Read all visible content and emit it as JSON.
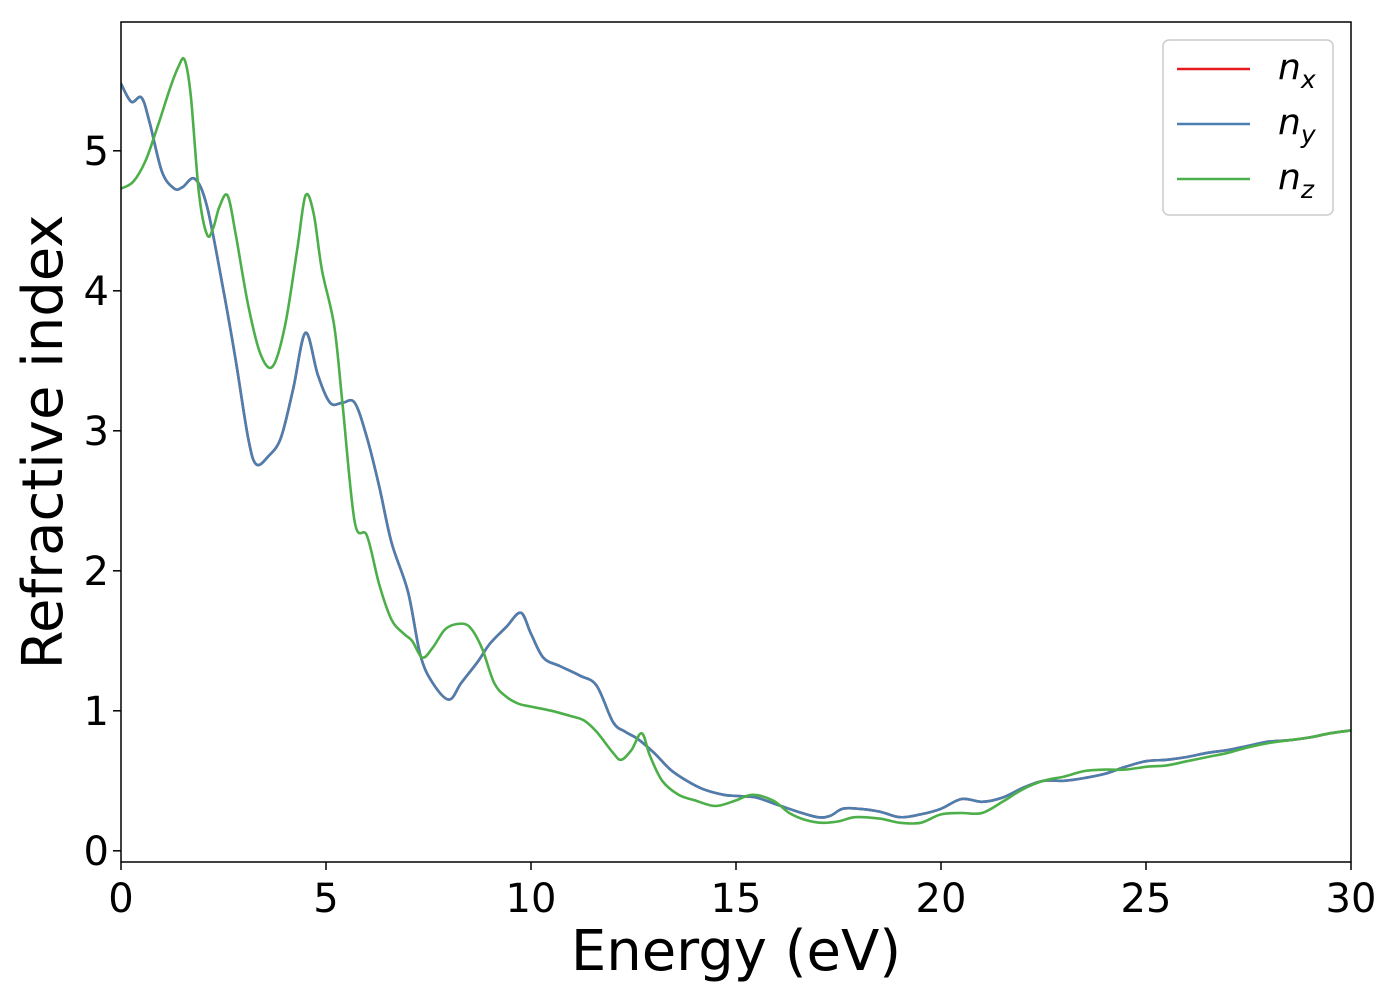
{
  "chart_data": {
    "type": "line",
    "title": "",
    "xlabel": "Energy (eV)",
    "ylabel": "Refractive index",
    "xlim": [
      0,
      30
    ],
    "ylim": [
      -0.08,
      5.92
    ],
    "xticks": [
      0,
      5,
      10,
      15,
      20,
      25,
      30
    ],
    "yticks": [
      0,
      1,
      2,
      3,
      4,
      5
    ],
    "grid": false,
    "legend": "top-right",
    "series": [
      {
        "name": "n_x",
        "base": "n",
        "sub": "x",
        "color": "#e41a1c",
        "x": [
          0,
          0.25,
          0.5,
          0.7,
          1,
          1.3,
          1.5,
          1.8,
          2.1,
          2.5,
          2.8,
          3.1,
          3.3,
          3.6,
          3.9,
          4.2,
          4.5,
          4.8,
          5.1,
          5.4,
          5.7,
          6,
          6.3,
          6.6,
          7,
          7.3,
          7.6,
          8,
          8.3,
          8.7,
          9,
          9.4,
          9.75,
          10,
          10.3,
          10.7,
          11.2,
          11.6,
          12,
          12.3,
          12.6,
          13,
          13.4,
          13.8,
          14.2,
          14.7,
          15.1,
          15.5,
          16,
          16.5,
          17,
          17.3,
          17.6,
          18,
          18.5,
          19,
          19.5,
          20,
          20.5,
          21,
          21.5,
          22,
          22.5,
          23,
          23.5,
          24,
          24.5,
          25,
          25.5,
          26,
          26.5,
          27,
          27.5,
          28,
          28.5,
          29,
          29.5,
          30
        ],
        "y": [
          5.48,
          5.35,
          5.38,
          5.2,
          4.85,
          4.73,
          4.74,
          4.8,
          4.6,
          4.0,
          3.5,
          2.95,
          2.76,
          2.82,
          2.95,
          3.3,
          3.7,
          3.4,
          3.2,
          3.2,
          3.2,
          2.95,
          2.6,
          2.2,
          1.85,
          1.4,
          1.2,
          1.08,
          1.2,
          1.35,
          1.48,
          1.6,
          1.7,
          1.55,
          1.38,
          1.32,
          1.25,
          1.18,
          0.92,
          0.85,
          0.8,
          0.7,
          0.58,
          0.5,
          0.44,
          0.4,
          0.39,
          0.38,
          0.33,
          0.28,
          0.24,
          0.25,
          0.3,
          0.3,
          0.28,
          0.24,
          0.26,
          0.3,
          0.37,
          0.35,
          0.38,
          0.45,
          0.5,
          0.5,
          0.52,
          0.55,
          0.6,
          0.64,
          0.65,
          0.67,
          0.7,
          0.72,
          0.75,
          0.78,
          0.79,
          0.81,
          0.84,
          0.86
        ]
      },
      {
        "name": "n_y",
        "base": "n",
        "sub": "y",
        "color": "#4a7fb0",
        "x": [
          0,
          0.25,
          0.5,
          0.7,
          1,
          1.3,
          1.5,
          1.8,
          2.1,
          2.5,
          2.8,
          3.1,
          3.3,
          3.6,
          3.9,
          4.2,
          4.5,
          4.8,
          5.1,
          5.4,
          5.7,
          6,
          6.3,
          6.6,
          7,
          7.3,
          7.6,
          8,
          8.3,
          8.7,
          9,
          9.4,
          9.75,
          10,
          10.3,
          10.7,
          11.2,
          11.6,
          12,
          12.3,
          12.6,
          13,
          13.4,
          13.8,
          14.2,
          14.7,
          15.1,
          15.5,
          16,
          16.5,
          17,
          17.3,
          17.6,
          18,
          18.5,
          19,
          19.5,
          20,
          20.5,
          21,
          21.5,
          22,
          22.5,
          23,
          23.5,
          24,
          24.5,
          25,
          25.5,
          26,
          26.5,
          27,
          27.5,
          28,
          28.5,
          29,
          29.5,
          30
        ],
        "y": [
          5.48,
          5.35,
          5.38,
          5.2,
          4.85,
          4.73,
          4.74,
          4.8,
          4.6,
          4.0,
          3.5,
          2.95,
          2.76,
          2.82,
          2.95,
          3.3,
          3.7,
          3.4,
          3.2,
          3.2,
          3.2,
          2.95,
          2.6,
          2.2,
          1.85,
          1.4,
          1.2,
          1.08,
          1.2,
          1.35,
          1.48,
          1.6,
          1.7,
          1.55,
          1.38,
          1.32,
          1.25,
          1.18,
          0.92,
          0.85,
          0.8,
          0.7,
          0.58,
          0.5,
          0.44,
          0.4,
          0.39,
          0.38,
          0.33,
          0.28,
          0.24,
          0.25,
          0.3,
          0.3,
          0.28,
          0.24,
          0.26,
          0.3,
          0.37,
          0.35,
          0.38,
          0.45,
          0.5,
          0.5,
          0.52,
          0.55,
          0.6,
          0.64,
          0.65,
          0.67,
          0.7,
          0.72,
          0.75,
          0.78,
          0.79,
          0.81,
          0.84,
          0.86
        ]
      },
      {
        "name": "n_z",
        "base": "n",
        "sub": "z",
        "color": "#4daf4a",
        "x": [
          0,
          0.3,
          0.6,
          0.9,
          1.2,
          1.4,
          1.55,
          1.7,
          1.9,
          2.1,
          2.25,
          2.4,
          2.6,
          2.8,
          3.1,
          3.4,
          3.7,
          4.0,
          4.3,
          4.5,
          4.7,
          4.9,
          5.2,
          5.4,
          5.7,
          6.0,
          6.3,
          6.6,
          6.9,
          7.1,
          7.35,
          7.6,
          7.9,
          8.2,
          8.5,
          8.8,
          9.1,
          9.4,
          9.7,
          10,
          10.5,
          11,
          11.3,
          11.6,
          12,
          12.2,
          12.45,
          12.7,
          12.9,
          13.2,
          13.6,
          14,
          14.5,
          15,
          15.4,
          15.9,
          16.3,
          16.7,
          17.1,
          17.5,
          17.9,
          18.5,
          19,
          19.5,
          20,
          20.5,
          21,
          21.5,
          22,
          22.5,
          23,
          23.5,
          24,
          24.5,
          25,
          25.5,
          26,
          26.5,
          27,
          27.5,
          28,
          28.5,
          29,
          29.5,
          30
        ],
        "y": [
          4.73,
          4.78,
          4.93,
          5.18,
          5.45,
          5.6,
          5.65,
          5.4,
          4.7,
          4.4,
          4.45,
          4.6,
          4.68,
          4.4,
          3.9,
          3.55,
          3.46,
          3.75,
          4.3,
          4.68,
          4.55,
          4.15,
          3.75,
          3.2,
          2.35,
          2.25,
          1.9,
          1.65,
          1.55,
          1.5,
          1.38,
          1.45,
          1.58,
          1.62,
          1.6,
          1.45,
          1.2,
          1.1,
          1.05,
          1.03,
          1.0,
          0.96,
          0.93,
          0.85,
          0.7,
          0.65,
          0.72,
          0.84,
          0.68,
          0.5,
          0.4,
          0.36,
          0.32,
          0.36,
          0.4,
          0.36,
          0.27,
          0.22,
          0.2,
          0.21,
          0.24,
          0.23,
          0.2,
          0.2,
          0.26,
          0.27,
          0.27,
          0.35,
          0.44,
          0.5,
          0.53,
          0.57,
          0.58,
          0.58,
          0.6,
          0.61,
          0.64,
          0.67,
          0.7,
          0.74,
          0.77,
          0.79,
          0.81,
          0.84,
          0.86
        ]
      }
    ]
  }
}
